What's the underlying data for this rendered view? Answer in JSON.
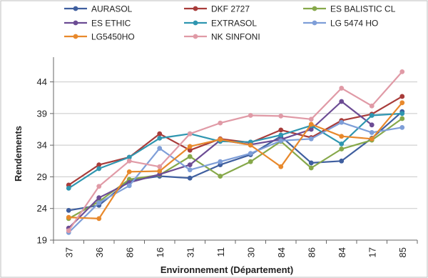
{
  "chart_data": {
    "type": "line",
    "title": "",
    "xlabel": "Environnement (Département)",
    "ylabel": "Rendements",
    "categories": [
      "37",
      "36",
      "86",
      "16",
      "31",
      "11",
      "30",
      "84",
      "86",
      "84",
      "17",
      "85"
    ],
    "yticks": [
      "19",
      "24",
      "29",
      "34",
      "39",
      "44"
    ],
    "ylim": [
      19,
      47
    ],
    "grid": "horizontal",
    "legend_position": "top",
    "series": [
      {
        "name": "AURASOL",
        "color": "#3F5F9F",
        "values": [
          23.7,
          24.5,
          28.4,
          29.1,
          28.8,
          30.9,
          32.5,
          35.4,
          31.2,
          31.5,
          35.1,
          39.3
        ]
      },
      {
        "name": "DKF 2727",
        "color": "#A83C3A",
        "values": [
          27.7,
          30.9,
          32.1,
          35.8,
          33.2,
          35.0,
          34.4,
          36.4,
          35.2,
          37.9,
          38.9,
          41.7
        ]
      },
      {
        "name": "ES BALISTIC CL",
        "color": "#86A84A",
        "values": [
          22.4,
          25.1,
          28.6,
          29.3,
          32.2,
          29.1,
          31.4,
          34.6,
          30.4,
          33.4,
          34.8,
          38.2
        ]
      },
      {
        "name": "ES ETHIC",
        "color": "#6C4C94",
        "values": [
          20.9,
          25.7,
          28.1,
          29.4,
          30.9,
          34.8,
          34.1,
          34.9,
          36.5,
          40.9,
          37.2,
          null
        ]
      },
      {
        "name": "EXTRASOL",
        "color": "#2F96B0",
        "values": [
          27.2,
          30.3,
          32.1,
          35.1,
          35.8,
          34.6,
          34.5,
          35.6,
          37.1,
          34.2,
          38.7,
          39.0
        ]
      },
      {
        "name": "LG 5474 HO",
        "color": "#7E9ED8",
        "values": [
          20.2,
          24.9,
          27.6,
          33.5,
          30.1,
          31.4,
          32.7,
          34.7,
          35.0,
          37.6,
          36.0,
          36.8
        ]
      },
      {
        "name": "LG5450HO",
        "color": "#E8892C",
        "values": [
          22.6,
          22.4,
          29.8,
          29.9,
          33.8,
          34.9,
          34.0,
          30.6,
          37.3,
          35.4,
          35.0,
          40.7
        ]
      },
      {
        "name": "NK SINFONI",
        "color": "#E09AA6",
        "values": [
          20.5,
          27.5,
          31.5,
          30.6,
          35.8,
          37.5,
          38.7,
          38.6,
          38.1,
          43.0,
          40.2,
          45.6
        ]
      }
    ]
  }
}
